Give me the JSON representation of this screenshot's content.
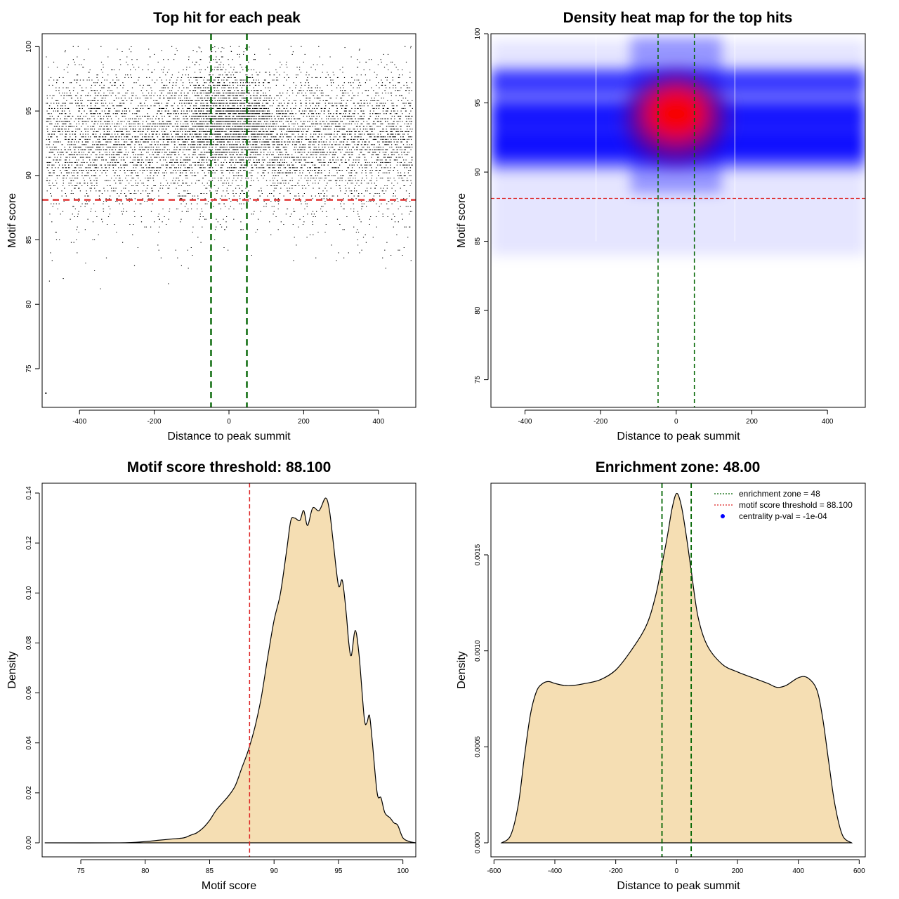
{
  "colors": {
    "threshold": "#dd2222",
    "zone": "#006400",
    "fill": "#f5deb3",
    "points": "#000000",
    "heat_low": "#0000ff",
    "heat_high": "#ff0000",
    "legend_dot": "#0000ff"
  },
  "chart_data": [
    {
      "type": "scatter",
      "title": "Top hit for each peak",
      "xlabel": "Distance to peak summit",
      "ylabel": "Motif score",
      "xlim": [
        -500,
        500
      ],
      "ylim": [
        72,
        101
      ],
      "xticks": [
        -400,
        -200,
        0,
        200,
        400
      ],
      "yticks": [
        75,
        80,
        85,
        90,
        95,
        100
      ],
      "threshold_y": 88.1,
      "zone_x": [
        -48,
        48
      ],
      "point_density": {
        "x_range": [
          -490,
          490
        ],
        "score_mode_central": 94,
        "score_modes_flank": [
          92,
          94
        ],
        "min_score_shown": 73.1,
        "max_score_shown": 100
      }
    },
    {
      "type": "heatmap",
      "title": "Density heat map for the top hits",
      "xlabel": "Distance to peak summit",
      "ylabel": "Motif score",
      "xlim": [
        -490,
        500
      ],
      "ylim": [
        73,
        100
      ],
      "xticks": [
        -400,
        -200,
        0,
        200,
        400
      ],
      "yticks": [
        75,
        80,
        85,
        90,
        95,
        100
      ],
      "threshold_y": 88.1,
      "zone_x": [
        -48,
        48
      ],
      "hotspot": {
        "x": 0,
        "y": 94.2
      },
      "band_centers_y": [
        92.0,
        94.0,
        96.5
      ]
    },
    {
      "type": "area",
      "title": "Motif score threshold: 88.100",
      "xlabel": "Motif score",
      "ylabel": "Density",
      "xlim": [
        72,
        101
      ],
      "ylim": [
        0,
        0.14
      ],
      "xticks": [
        75,
        80,
        85,
        90,
        95,
        100
      ],
      "yticks": [
        0.0,
        0.02,
        0.04,
        0.06,
        0.08,
        0.1,
        0.12,
        0.14
      ],
      "ytick_labels": [
        "0.00",
        "0.02",
        "0.04",
        "0.06",
        "0.08",
        "0.10",
        "0.12",
        "0.14"
      ],
      "threshold_x": 88.1,
      "x": [
        72.2,
        78,
        80,
        81,
        82,
        83,
        83.5,
        84,
        84.5,
        85,
        85.5,
        86,
        86.5,
        87,
        87.5,
        88,
        88.5,
        89,
        89.5,
        90,
        90.5,
        91,
        91.3,
        91.6,
        92,
        92.3,
        92.6,
        93,
        93.5,
        94,
        94.3,
        94.6,
        95,
        95.3,
        95.6,
        95.8,
        96,
        96.3,
        96.6,
        97,
        97.2,
        97.4,
        97.6,
        98,
        98.3,
        98.6,
        99,
        99.3,
        99.6,
        100,
        100.5,
        101
      ],
      "y": [
        0,
        0,
        0.0005,
        0.001,
        0.0015,
        0.002,
        0.003,
        0.004,
        0.006,
        0.009,
        0.013,
        0.016,
        0.019,
        0.023,
        0.03,
        0.037,
        0.046,
        0.058,
        0.074,
        0.089,
        0.1,
        0.118,
        0.129,
        0.13,
        0.129,
        0.133,
        0.127,
        0.134,
        0.133,
        0.138,
        0.133,
        0.12,
        0.103,
        0.105,
        0.092,
        0.08,
        0.075,
        0.085,
        0.075,
        0.05,
        0.048,
        0.051,
        0.042,
        0.02,
        0.018,
        0.012,
        0.01,
        0.008,
        0.007,
        0.002,
        0.0005,
        0
      ]
    },
    {
      "type": "area",
      "title": "Enrichment zone: 48.00",
      "xlabel": "Distance to peak summit",
      "ylabel": "Density",
      "xlim": [
        -610,
        620
      ],
      "ylim": [
        0,
        0.0018
      ],
      "xticks": [
        -600,
        -400,
        -200,
        0,
        200,
        400,
        600
      ],
      "yticks": [
        0.0,
        0.0005,
        0.001,
        0.0015
      ],
      "ytick_labels": [
        "0.0000",
        "0.0005",
        "0.0010",
        "0.0015"
      ],
      "zone_x": [
        -48,
        48
      ],
      "x": [
        -575,
        -545,
        -520,
        -500,
        -480,
        -460,
        -440,
        -420,
        -400,
        -370,
        -340,
        -300,
        -250,
        -200,
        -150,
        -100,
        -70,
        -48,
        -30,
        -15,
        0,
        15,
        30,
        48,
        70,
        100,
        150,
        200,
        250,
        300,
        330,
        360,
        400,
        430,
        460,
        480,
        500,
        520,
        545,
        575
      ],
      "y": [
        0,
        4e-05,
        0.0002,
        0.00045,
        0.00067,
        0.00079,
        0.00083,
        0.00084,
        0.00083,
        0.00082,
        0.00082,
        0.00083,
        0.00085,
        0.0009,
        0.001,
        0.00113,
        0.00128,
        0.00145,
        0.0016,
        0.00174,
        0.00182,
        0.00176,
        0.00162,
        0.00142,
        0.00118,
        0.00103,
        0.00093,
        0.00089,
        0.00086,
        0.00083,
        0.00081,
        0.00082,
        0.00086,
        0.00086,
        0.0008,
        0.00065,
        0.00042,
        0.0002,
        4e-05,
        0
      ],
      "legend": [
        {
          "label": "enrichment zone = 48",
          "style": "dotted-green"
        },
        {
          "label": "motif score threshold = 88.100",
          "style": "dotted-red"
        },
        {
          "label": "centrality p-val = -1e-04",
          "style": "blue-dot"
        }
      ],
      "legend_position": "top-right"
    }
  ]
}
